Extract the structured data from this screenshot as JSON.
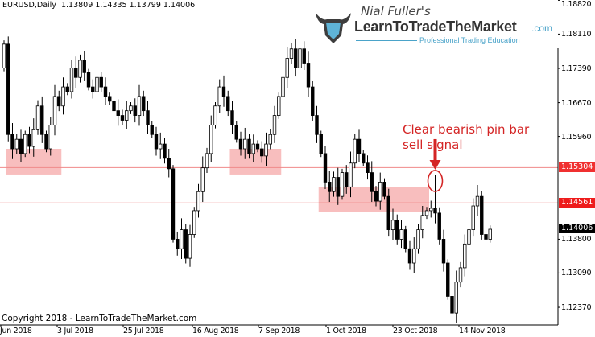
{
  "header": {
    "symbol_timeframe": "EURUSD,Daily",
    "ohlc": "1.13809 1.14335 1.13799 1.14006"
  },
  "logo": {
    "byline": "Nial Fuller's",
    "name": "LearnToTradeTheMarket",
    "domain": ".com",
    "tagline": "Professional Trading Education",
    "icon": "bull-head-icon"
  },
  "copyright": "Copyright 2018 - LearnToTradeTheMarket.com",
  "colors": {
    "resistance_light": "#f08a8a",
    "resistance": "#e02a2a",
    "zone": "#f7b3b3",
    "annotation": "#d42525",
    "bull_body": "#ffffff",
    "bear_body": "#000000"
  },
  "chart_data": {
    "type": "candlestick",
    "symbol": "EURUSD",
    "timeframe": "Daily",
    "ylim": [
      1.12,
      1.1882
    ],
    "y_ticks": [
      "1.18820",
      "1.18110",
      "1.17390",
      "1.16670",
      "1.15960",
      "1.13800",
      "1.13090",
      "1.12370"
    ],
    "x_ticks": [
      "Jun 2018",
      "3 Jul 2018",
      "25 Jul 2018",
      "16 Aug 2018",
      "7 Sep 2018",
      "1 Oct 2018",
      "23 Oct 2018",
      "14 Nov 2018"
    ],
    "first_open": 1.174,
    "closes": [
      1.179,
      1.16,
      1.157,
      1.159,
      1.156,
      1.16,
      1.1575,
      1.161,
      1.166,
      1.16,
      1.157,
      1.162,
      1.168,
      1.166,
      1.17,
      1.169,
      1.174,
      1.172,
      1.1756,
      1.173,
      1.17,
      1.169,
      1.172,
      1.17,
      1.168,
      1.167,
      1.165,
      1.164,
      1.163,
      1.165,
      1.166,
      1.164,
      1.168,
      1.165,
      1.162,
      1.16,
      1.157,
      1.158,
      1.155,
      1.1528,
      1.138,
      1.136,
      1.14,
      1.134,
      1.139,
      1.144,
      1.148,
      1.153,
      1.156,
      1.162,
      1.166,
      1.17,
      1.168,
      1.165,
      1.162,
      1.159,
      1.157,
      1.159,
      1.156,
      1.158,
      1.157,
      1.1555,
      1.158,
      1.16,
      1.164,
      1.168,
      1.172,
      1.176,
      1.178,
      1.174,
      1.178,
      1.175,
      1.17,
      1.164,
      1.16,
      1.156,
      1.15,
      1.148,
      1.151,
      1.147,
      1.152,
      1.149,
      1.154,
      1.159,
      1.156,
      1.154,
      1.152,
      1.148,
      1.146,
      1.15,
      1.147,
      1.14,
      1.142,
      1.138,
      1.14,
      1.136,
      1.133,
      1.136,
      1.14,
      1.143,
      1.144,
      1.1445,
      1.1435,
      1.138,
      1.133,
      1.126,
      1.1225,
      1.129,
      1.132,
      1.137,
      1.14,
      1.145,
      1.147,
      1.139,
      1.138,
      1.1401
    ],
    "pin_bar": {
      "index": 102,
      "high": 1.1516
    },
    "levels": [
      {
        "price": 1.15304,
        "label": "1.15304",
        "color": "#f08a8a"
      },
      {
        "price": 1.14561,
        "label": "1.14561",
        "color": "#e02a2a"
      }
    ],
    "current_price": {
      "price": 1.14006,
      "label": "1.14006"
    },
    "zones": [
      {
        "from_index": 1,
        "to_index": 13,
        "low": 1.1516,
        "high": 1.157
      },
      {
        "from_index": 54,
        "to_index": 65,
        "low": 1.1516,
        "high": 1.157
      },
      {
        "from_index": 75,
        "to_index": 100,
        "low": 1.1438,
        "high": 1.149
      }
    ],
    "annotation": {
      "line1": "Clear bearish pin bar",
      "line2": "sell signal"
    }
  }
}
